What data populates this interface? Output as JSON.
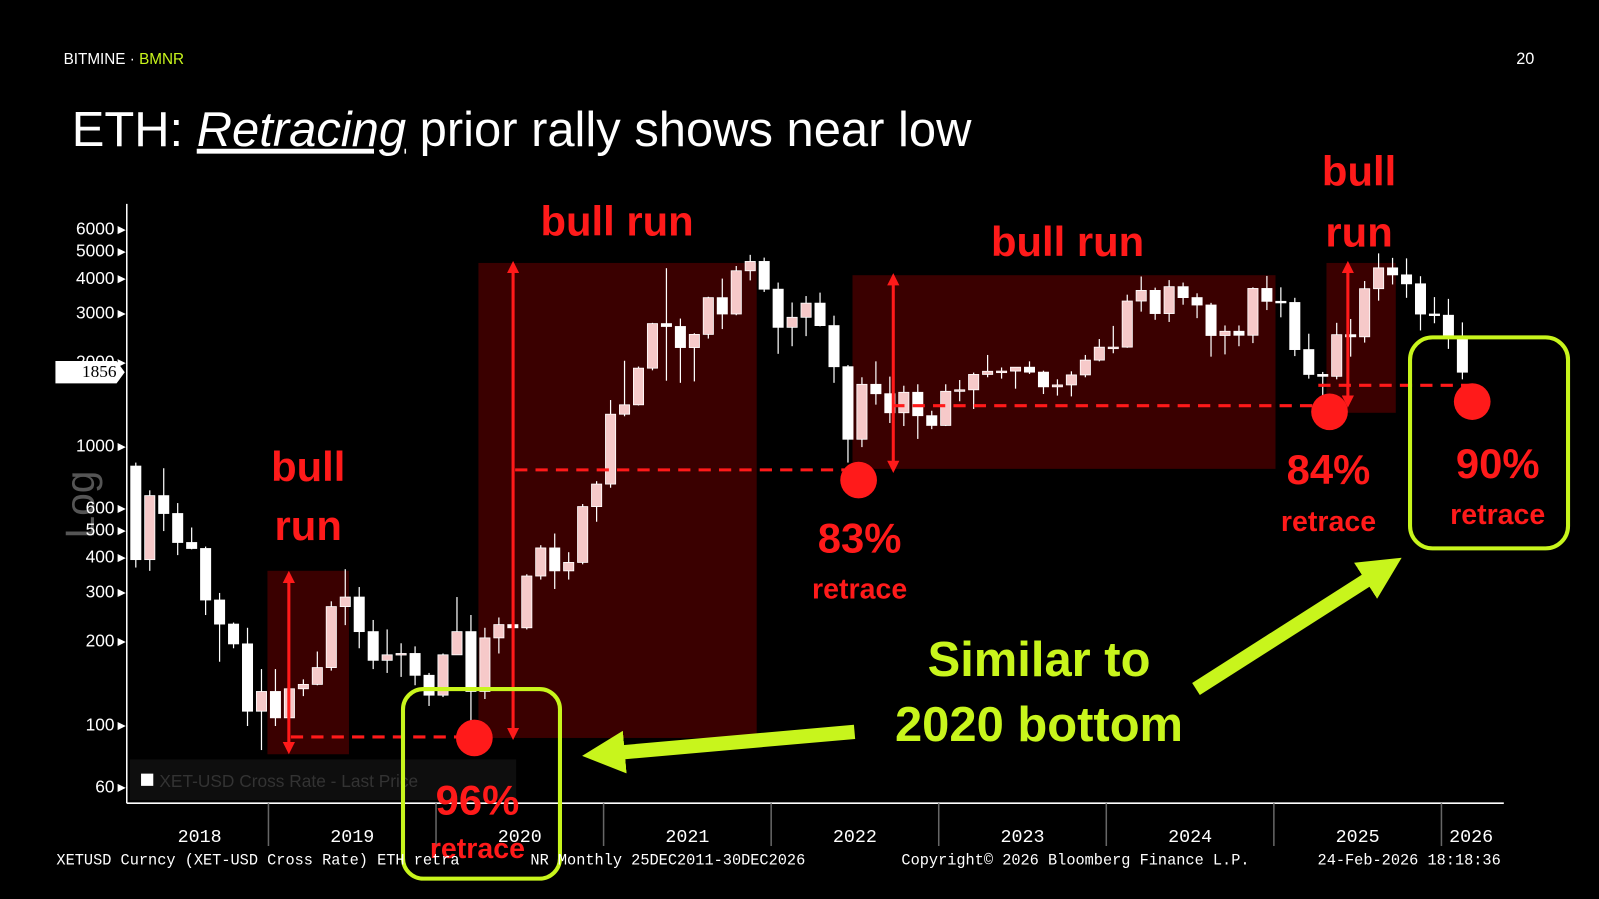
{
  "header": {
    "brand": "BITMINE",
    "separator": "·",
    "ticker": "BMNR",
    "page": "20"
  },
  "title": {
    "prefix": "ETH:",
    "emphasis": "Retracing",
    "rest": "prior rally shows near low"
  },
  "chart_data": {
    "type": "candlestick",
    "y_scale": "log",
    "y_label": "Log",
    "ylim": [
      52,
      7450
    ],
    "yticks": [
      60,
      100,
      200,
      300,
      400,
      500,
      600,
      1000,
      2000,
      3000,
      4000,
      5000,
      6000
    ],
    "last_price": 1856,
    "categories": [
      "2018",
      "2019",
      "2020",
      "2021",
      "2022",
      "2023",
      "2024",
      "2025",
      "2026"
    ],
    "legend": "XET-USD Cross Rate - Last Price",
    "colors": {
      "up": "#f6c9c9",
      "down": "#ffffff",
      "wick": "#ffffff"
    },
    "candles": [
      [
        855,
        880,
        370,
        395
      ],
      [
        395,
        700,
        360,
        670
      ],
      [
        670,
        840,
        500,
        578
      ],
      [
        578,
        630,
        410,
        455
      ],
      [
        455,
        515,
        430,
        433
      ],
      [
        433,
        440,
        250,
        283
      ],
      [
        283,
        300,
        170,
        232
      ],
      [
        232,
        235,
        190,
        197
      ],
      [
        197,
        225,
        100,
        113
      ],
      [
        113,
        160,
        82,
        133
      ],
      [
        133,
        160,
        100,
        107
      ],
      [
        107,
        165,
        102,
        136
      ],
      [
        136,
        147,
        128,
        141
      ],
      [
        141,
        185,
        140,
        162
      ],
      [
        162,
        280,
        158,
        268
      ],
      [
        268,
        365,
        230,
        290
      ],
      [
        290,
        315,
        190,
        218
      ],
      [
        218,
        240,
        160,
        172
      ],
      [
        172,
        222,
        155,
        180
      ],
      [
        180,
        198,
        150,
        182
      ],
      [
        182,
        193,
        140,
        152
      ],
      [
        152,
        155,
        118,
        129
      ],
      [
        129,
        182,
        127,
        180
      ],
      [
        180,
        290,
        180,
        218
      ],
      [
        218,
        250,
        86,
        133
      ],
      [
        133,
        225,
        125,
        207
      ],
      [
        207,
        245,
        182,
        231
      ],
      [
        231,
        253,
        216,
        225
      ],
      [
        225,
        350,
        222,
        345
      ],
      [
        345,
        445,
        335,
        435
      ],
      [
        435,
        490,
        310,
        360
      ],
      [
        360,
        420,
        335,
        386
      ],
      [
        386,
        625,
        380,
        612
      ],
      [
        612,
        755,
        540,
        737
      ],
      [
        737,
        1475,
        715,
        1312
      ],
      [
        1312,
        2040,
        1290,
        1418
      ],
      [
        1418,
        1945,
        1410,
        1919
      ],
      [
        1919,
        2790,
        1885,
        2772
      ],
      [
        2772,
        4380,
        1730,
        2707
      ],
      [
        2707,
        2890,
        1700,
        2275
      ],
      [
        2275,
        2560,
        1720,
        2536
      ],
      [
        2536,
        3460,
        2450,
        3434
      ],
      [
        3434,
        4020,
        2650,
        3001
      ],
      [
        3001,
        4460,
        2970,
        4288
      ],
      [
        4288,
        4890,
        3960,
        4631
      ],
      [
        4631,
        4780,
        3600,
        3683
      ],
      [
        3683,
        3890,
        2160,
        2688
      ],
      [
        2688,
        3300,
        2300,
        2920
      ],
      [
        2920,
        3480,
        2500,
        3282
      ],
      [
        3282,
        3580,
        2710,
        2727
      ],
      [
        2727,
        2960,
        1700,
        1942
      ],
      [
        1942,
        1970,
        880,
        1067
      ],
      [
        1067,
        1780,
        1000,
        1679
      ],
      [
        1679,
        2030,
        1420,
        1554
      ],
      [
        1554,
        1790,
        1220,
        1328
      ],
      [
        1328,
        1660,
        1190,
        1572
      ],
      [
        1572,
        1680,
        1070,
        1296
      ],
      [
        1296,
        1350,
        1160,
        1196
      ],
      [
        1196,
        1680,
        1190,
        1585
      ],
      [
        1585,
        1740,
        1460,
        1605
      ],
      [
        1605,
        1850,
        1370,
        1822
      ],
      [
        1822,
        2140,
        1780,
        1870
      ],
      [
        1870,
        1930,
        1760,
        1873
      ],
      [
        1873,
        1930,
        1620,
        1934
      ],
      [
        1934,
        2030,
        1830,
        1857
      ],
      [
        1857,
        1880,
        1550,
        1645
      ],
      [
        1645,
        1750,
        1530,
        1671
      ],
      [
        1671,
        1870,
        1520,
        1815
      ],
      [
        1815,
        2140,
        1780,
        2051
      ],
      [
        2051,
        2440,
        2030,
        2282
      ],
      [
        2282,
        2720,
        2170,
        2283
      ],
      [
        2283,
        3520,
        2270,
        3340
      ],
      [
        3340,
        4090,
        3060,
        3646
      ],
      [
        3646,
        3730,
        2860,
        3012
      ],
      [
        3012,
        3970,
        2810,
        3760
      ],
      [
        3760,
        3890,
        3240,
        3436
      ],
      [
        3436,
        3560,
        2900,
        3232
      ],
      [
        3232,
        3290,
        2110,
        2513
      ],
      [
        2513,
        2730,
        2150,
        2602
      ],
      [
        2602,
        2730,
        2300,
        2518
      ],
      [
        2518,
        3740,
        2360,
        3705
      ],
      [
        3705,
        4110,
        3100,
        3332
      ],
      [
        3332,
        3740,
        2920,
        3300
      ],
      [
        3300,
        3430,
        2120,
        2237
      ],
      [
        2237,
        2550,
        1760,
        1822
      ],
      [
        1822,
        1860,
        1390,
        1794
      ],
      [
        1794,
        2790,
        1750,
        2530
      ],
      [
        2530,
        2880,
        2110,
        2486
      ],
      [
        2486,
        3940,
        2370,
        3698
      ],
      [
        3698,
        4950,
        3350,
        4392
      ],
      [
        4392,
        4770,
        3830,
        4145
      ],
      [
        4145,
        4750,
        3430,
        3850
      ],
      [
        3850,
        4100,
        2620,
        3000
      ],
      [
        3000,
        3450,
        2780,
        2970
      ],
      [
        2970,
        3400,
        2250,
        2450
      ],
      [
        2450,
        2800,
        1750,
        1856
      ]
    ],
    "annotations": {
      "bull_run_2019": [
        "bull",
        "run"
      ],
      "bull_run_2021": "bull run",
      "bull_run_2023": "bull run",
      "bull_run_2025": [
        "bull",
        "run"
      ],
      "retrace_2020": [
        "96%",
        "retrace"
      ],
      "retrace_2022": [
        "83%",
        "retrace"
      ],
      "retrace_2024": [
        "84%",
        "retrace"
      ],
      "retrace_2026": [
        "90%",
        "retrace"
      ],
      "callout": [
        "Similar to",
        "2020 bottom"
      ]
    }
  },
  "footer": {
    "left": "XETUSD Curncy (XET-USD Cross Rate) ETH retra",
    "middle": "NR Monthly 25DEC2011-30DEC2026",
    "copyright": "Copyright© 2026 Bloomberg Finance L.P.",
    "timestamp": "24-Feb-2026 18:18:36"
  }
}
